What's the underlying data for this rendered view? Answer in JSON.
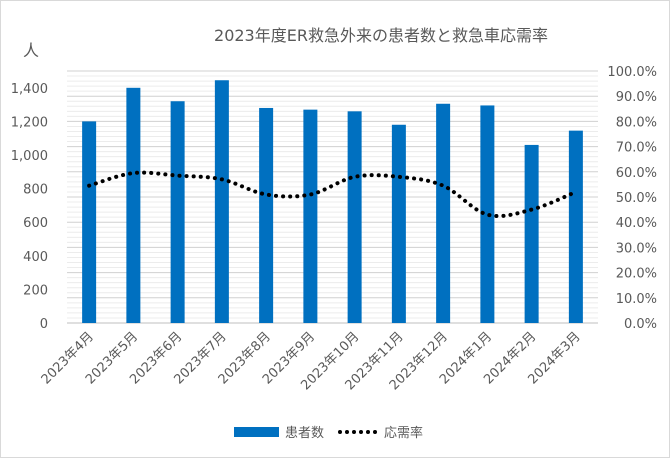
{
  "chart_data": {
    "type": "bar+line",
    "title": "2023年度ER救急外来の患者数と救急車応需率",
    "y_left_label": "人",
    "categories": [
      "2023年4月",
      "2023年5月",
      "2023年6月",
      "2023年7月",
      "2023年8月",
      "2023年9月",
      "2023年10月",
      "2023年11月",
      "2023年12月",
      "2024年1月",
      "2024年2月",
      "2024年3月"
    ],
    "series": [
      {
        "name": "患者数",
        "type": "bar",
        "axis": "left",
        "color": "#0070c0",
        "values": [
          1200,
          1400,
          1320,
          1445,
          1280,
          1270,
          1260,
          1180,
          1305,
          1295,
          1060,
          1145
        ]
      },
      {
        "name": "応需率",
        "type": "line",
        "axis": "right",
        "color": "#000000",
        "style": "dotted",
        "values": [
          0.545,
          0.595,
          0.585,
          0.57,
          0.51,
          0.51,
          0.58,
          0.58,
          0.545,
          0.43,
          0.45,
          0.52
        ]
      }
    ],
    "y_left": {
      "min": 0,
      "max": 1500,
      "ticks": [
        "0",
        "200",
        "400",
        "600",
        "800",
        "1,000",
        "1,200",
        "1,400"
      ],
      "tick_values": [
        0,
        200,
        400,
        600,
        800,
        1000,
        1200,
        1400
      ]
    },
    "y_right": {
      "min": 0,
      "max": 1,
      "ticks": [
        "0.0%",
        "10.0%",
        "20.0%",
        "30.0%",
        "40.0%",
        "50.0%",
        "60.0%",
        "70.0%",
        "80.0%",
        "90.0%",
        "100.0%"
      ],
      "tick_values": [
        0,
        0.1,
        0.2,
        0.3,
        0.4,
        0.5,
        0.6,
        0.7,
        0.8,
        0.9,
        1.0
      ]
    },
    "grid": true,
    "legend_position": "bottom"
  }
}
